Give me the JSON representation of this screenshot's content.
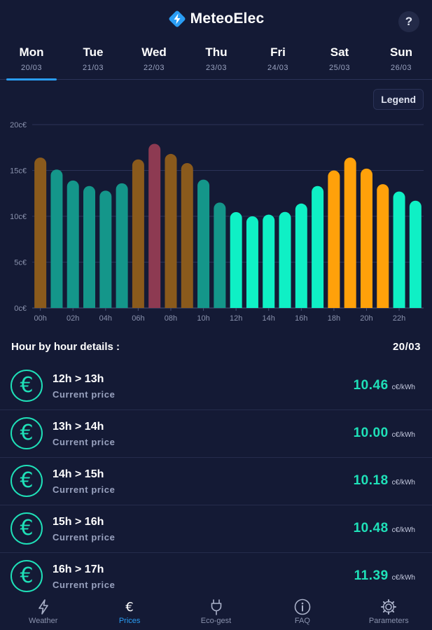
{
  "app": {
    "title": "MeteoElec",
    "help_label": "?"
  },
  "days": [
    {
      "name": "Mon",
      "date": "20/03",
      "active": true
    },
    {
      "name": "Tue",
      "date": "21/03",
      "active": false
    },
    {
      "name": "Wed",
      "date": "22/03",
      "active": false
    },
    {
      "name": "Thu",
      "date": "23/03",
      "active": false
    },
    {
      "name": "Fri",
      "date": "24/03",
      "active": false
    },
    {
      "name": "Sat",
      "date": "25/03",
      "active": false
    },
    {
      "name": "Sun",
      "date": "26/03",
      "active": false
    }
  ],
  "legend_label": "Legend",
  "colors": {
    "background": "#141a35",
    "accent": "#2a9df4",
    "price_green": "#1fe0b8",
    "low": "#0ff0c5",
    "medium": "#14968a",
    "elevated": "#8a5a1c",
    "high": "#ffa10a",
    "peak": "#8d3a52"
  },
  "chart_data": {
    "type": "bar",
    "categories": [
      "00h",
      "01h",
      "02h",
      "03h",
      "04h",
      "05h",
      "06h",
      "07h",
      "08h",
      "09h",
      "10h",
      "11h",
      "12h",
      "13h",
      "14h",
      "15h",
      "16h",
      "17h",
      "18h",
      "19h",
      "20h",
      "21h",
      "22h",
      "23h"
    ],
    "values": [
      16.4,
      15.1,
      13.9,
      13.3,
      12.8,
      13.6,
      16.2,
      17.9,
      16.8,
      15.8,
      14.0,
      11.5,
      10.46,
      10.0,
      10.18,
      10.48,
      11.39,
      13.3,
      15.0,
      16.4,
      15.2,
      13.5,
      12.7,
      11.7
    ],
    "levels": [
      "elevated",
      "medium",
      "medium",
      "medium",
      "medium",
      "medium",
      "elevated",
      "peak",
      "elevated",
      "elevated",
      "medium",
      "medium",
      "low",
      "low",
      "low",
      "low",
      "low",
      "low",
      "high",
      "high",
      "high",
      "high",
      "low",
      "low"
    ],
    "tick_labels": [
      "00h",
      "02h",
      "04h",
      "06h",
      "08h",
      "10h",
      "12h",
      "14h",
      "16h",
      "18h",
      "20h",
      "22h"
    ],
    "y_ticks": [
      {
        "value": 0,
        "label": "0c€"
      },
      {
        "value": 5,
        "label": "5c€"
      },
      {
        "value": 10,
        "label": "10c€"
      },
      {
        "value": 15,
        "label": "15c€"
      },
      {
        "value": 20,
        "label": "20c€"
      }
    ],
    "ylim": [
      0,
      20
    ],
    "grid": true
  },
  "details": {
    "title": "Hour by hour details :",
    "date": "20/03",
    "rows": [
      {
        "range": "12h > 13h",
        "sub": "Current price",
        "price": "10.46",
        "unit": "c€/kWh"
      },
      {
        "range": "13h > 14h",
        "sub": "Current price",
        "price": "10.00",
        "unit": "c€/kWh"
      },
      {
        "range": "14h > 15h",
        "sub": "Current price",
        "price": "10.18",
        "unit": "c€/kWh"
      },
      {
        "range": "15h > 16h",
        "sub": "Current price",
        "price": "10.48",
        "unit": "c€/kWh"
      },
      {
        "range": "16h > 17h",
        "sub": "Current price",
        "price": "11.39",
        "unit": "c€/kWh"
      }
    ]
  },
  "nav": [
    {
      "label": "Weather",
      "icon": "bolt-icon",
      "active": false
    },
    {
      "label": "Prices",
      "icon": "euro-icon",
      "active": true
    },
    {
      "label": "Eco-gest",
      "icon": "plug-icon",
      "active": false
    },
    {
      "label": "FAQ",
      "icon": "info-icon",
      "active": false
    },
    {
      "label": "Parameters",
      "icon": "gear-icon",
      "active": false
    }
  ]
}
